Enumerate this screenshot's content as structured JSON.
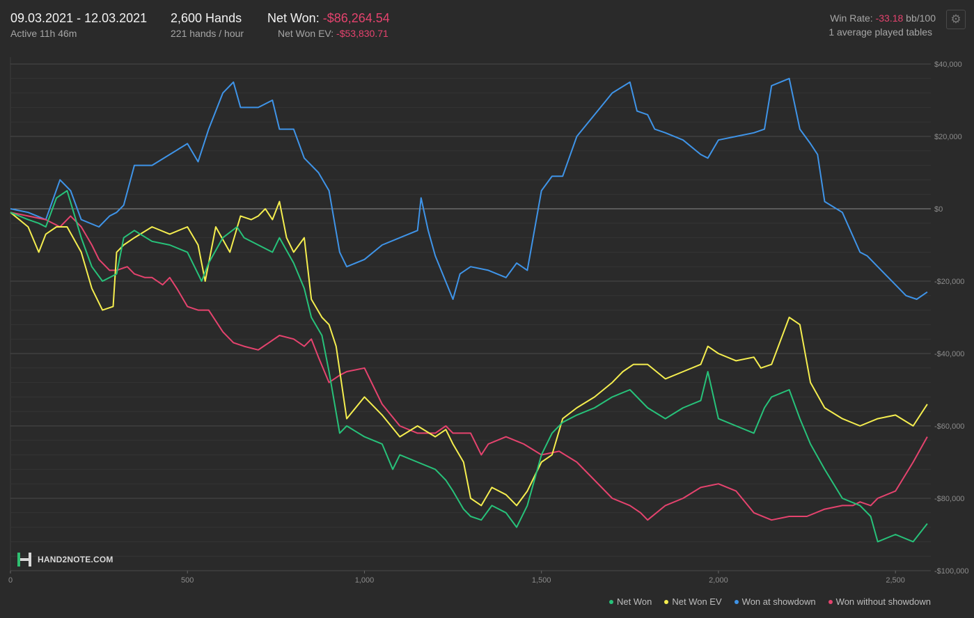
{
  "header": {
    "date_range": "09.03.2021 - 12.03.2021",
    "active": "Active 11h 46m",
    "hands": "2,600 Hands",
    "hands_per_hour": "221 hands / hour",
    "net_won_label": "Net Won:",
    "net_won_value": "-$86,264.54",
    "net_won_ev_label": "Net Won  EV:",
    "net_won_ev_value": "-$53,830.71",
    "win_rate_label": "Win Rate:",
    "win_rate_value": "-33.18",
    "win_rate_unit": "bb/100",
    "tables": "1 average played tables",
    "settings_icon": "gear-icon"
  },
  "logo": {
    "text": "HAND2NOTE.COM",
    "icon": "h2n-logo-icon"
  },
  "legend": [
    {
      "label": "Net Won",
      "color": "#27c27a"
    },
    {
      "label": "Net Won  EV",
      "color": "#f5ee4f"
    },
    {
      "label": "Won at showdown",
      "color": "#3f94e8"
    },
    {
      "label": "Won without showdown",
      "color": "#e5436e"
    }
  ],
  "chart_data": {
    "type": "line",
    "xlim": [
      0,
      2600
    ],
    "ylim": [
      -100000,
      40000
    ],
    "x_ticks": [
      0,
      500,
      1000,
      1500,
      2000,
      2500
    ],
    "x_tick_labels": [
      "0",
      "500",
      "1,000",
      "1,500",
      "2,000",
      "2,500"
    ],
    "y_ticks": [
      40000,
      20000,
      0,
      -20000,
      -40000,
      -60000,
      -80000,
      -100000
    ],
    "y_tick_labels": [
      "$40,000",
      "$20,000",
      "$0",
      "-$20,000",
      "-$40,000",
      "-$60,000",
      "-$80,000",
      "-$100,000"
    ],
    "grid": true,
    "legend_position": "bottom-right",
    "series": [
      {
        "name": "Won at showdown",
        "color": "#3f94e8",
        "x": [
          0,
          50,
          100,
          140,
          170,
          200,
          250,
          280,
          300,
          320,
          350,
          400,
          450,
          500,
          530,
          560,
          600,
          630,
          650,
          700,
          740,
          760,
          800,
          830,
          870,
          900,
          930,
          950,
          1000,
          1050,
          1100,
          1150,
          1160,
          1180,
          1200,
          1250,
          1270,
          1300,
          1350,
          1400,
          1430,
          1460,
          1500,
          1530,
          1560,
          1600,
          1650,
          1700,
          1750,
          1770,
          1800,
          1820,
          1850,
          1900,
          1950,
          1970,
          2000,
          2050,
          2100,
          2130,
          2150,
          2200,
          2230,
          2260,
          2280,
          2300,
          2350,
          2400,
          2420,
          2450,
          2500,
          2530,
          2560,
          2590
        ],
        "y": [
          0,
          -1000,
          -3000,
          8000,
          5000,
          -3000,
          -5000,
          -2000,
          -1000,
          1000,
          12000,
          12000,
          15000,
          18000,
          13000,
          22000,
          32000,
          35000,
          28000,
          28000,
          30000,
          22000,
          22000,
          14000,
          10000,
          5000,
          -12000,
          -16000,
          -14000,
          -10000,
          -8000,
          -6000,
          3000,
          -6000,
          -13000,
          -25000,
          -18000,
          -16000,
          -17000,
          -19000,
          -15000,
          -17000,
          5000,
          9000,
          9000,
          20000,
          26000,
          32000,
          35000,
          27000,
          26000,
          22000,
          21000,
          19000,
          15000,
          14000,
          19000,
          20000,
          21000,
          22000,
          34000,
          36000,
          22000,
          18000,
          15000,
          2000,
          -1000,
          -12000,
          -13000,
          -16000,
          -21000,
          -24000,
          -25000,
          -23000
        ]
      },
      {
        "name": "Won without showdown",
        "color": "#e5436e",
        "x": [
          0,
          50,
          100,
          140,
          170,
          200,
          230,
          250,
          280,
          300,
          330,
          350,
          380,
          400,
          430,
          450,
          470,
          500,
          530,
          560,
          600,
          630,
          660,
          700,
          730,
          760,
          800,
          830,
          850,
          870,
          900,
          930,
          950,
          1000,
          1030,
          1050,
          1100,
          1150,
          1200,
          1230,
          1250,
          1300,
          1330,
          1350,
          1400,
          1450,
          1500,
          1550,
          1600,
          1650,
          1700,
          1750,
          1780,
          1800,
          1850,
          1900,
          1950,
          2000,
          2050,
          2100,
          2150,
          2200,
          2250,
          2300,
          2350,
          2380,
          2400,
          2430,
          2450,
          2500,
          2550,
          2590
        ],
        "y": [
          -1000,
          -2000,
          -3000,
          -5000,
          -2000,
          -5000,
          -10000,
          -14000,
          -17000,
          -17000,
          -16000,
          -18000,
          -19000,
          -19000,
          -21000,
          -19000,
          -22000,
          -27000,
          -28000,
          -28000,
          -34000,
          -37000,
          -38000,
          -39000,
          -37000,
          -35000,
          -36000,
          -38000,
          -36000,
          -41000,
          -48000,
          -46000,
          -45000,
          -44000,
          -50000,
          -54000,
          -60000,
          -62000,
          -62000,
          -60000,
          -62000,
          -62000,
          -68000,
          -65000,
          -63000,
          -65000,
          -68000,
          -67000,
          -70000,
          -75000,
          -80000,
          -82000,
          -84000,
          -86000,
          -82000,
          -80000,
          -77000,
          -76000,
          -78000,
          -84000,
          -86000,
          -85000,
          -85000,
          -83000,
          -82000,
          -82000,
          -81000,
          -82000,
          -80000,
          -78000,
          -70000,
          -63000
        ]
      },
      {
        "name": "Net Won  EV",
        "color": "#f5ee4f",
        "x": [
          0,
          50,
          80,
          100,
          130,
          160,
          200,
          230,
          260,
          290,
          300,
          320,
          350,
          400,
          450,
          500,
          530,
          550,
          580,
          620,
          650,
          680,
          700,
          720,
          740,
          760,
          780,
          800,
          830,
          850,
          880,
          900,
          920,
          950,
          1000,
          1050,
          1100,
          1150,
          1200,
          1230,
          1250,
          1280,
          1300,
          1330,
          1360,
          1400,
          1430,
          1460,
          1500,
          1530,
          1560,
          1600,
          1650,
          1700,
          1730,
          1760,
          1800,
          1850,
          1900,
          1950,
          1970,
          2000,
          2050,
          2100,
          2120,
          2150,
          2200,
          2230,
          2260,
          2300,
          2350,
          2400,
          2450,
          2500,
          2550,
          2590
        ],
        "y": [
          -1000,
          -5000,
          -12000,
          -7000,
          -5000,
          -5000,
          -12000,
          -22000,
          -28000,
          -27000,
          -12000,
          -10000,
          -8000,
          -5000,
          -7000,
          -5000,
          -10000,
          -20000,
          -5000,
          -12000,
          -2000,
          -3000,
          -2000,
          0,
          -3000,
          2000,
          -8000,
          -12000,
          -8000,
          -25000,
          -30000,
          -32000,
          -38000,
          -58000,
          -52000,
          -57000,
          -63000,
          -60000,
          -63000,
          -61000,
          -65000,
          -70000,
          -80000,
          -82000,
          -77000,
          -79000,
          -82000,
          -78000,
          -70000,
          -68000,
          -58000,
          -55000,
          -52000,
          -48000,
          -45000,
          -43000,
          -43000,
          -47000,
          -45000,
          -43000,
          -38000,
          -40000,
          -42000,
          -41000,
          -44000,
          -43000,
          -30000,
          -32000,
          -48000,
          -55000,
          -58000,
          -60000,
          -58000,
          -57000,
          -60000,
          -54000
        ]
      },
      {
        "name": "Net Won",
        "color": "#27c27a",
        "x": [
          0,
          50,
          80,
          100,
          130,
          160,
          200,
          230,
          260,
          300,
          320,
          350,
          400,
          450,
          500,
          520,
          540,
          560,
          600,
          640,
          660,
          700,
          740,
          760,
          800,
          830,
          850,
          880,
          900,
          930,
          950,
          1000,
          1050,
          1080,
          1100,
          1150,
          1200,
          1230,
          1250,
          1280,
          1300,
          1330,
          1360,
          1400,
          1430,
          1460,
          1500,
          1530,
          1560,
          1600,
          1650,
          1700,
          1750,
          1800,
          1850,
          1900,
          1950,
          1970,
          2000,
          2050,
          2100,
          2130,
          2150,
          2200,
          2230,
          2260,
          2300,
          2350,
          2400,
          2430,
          2450,
          2500,
          2550,
          2590
        ],
        "y": [
          -1000,
          -3000,
          -4000,
          -5000,
          3000,
          5000,
          -8000,
          -16000,
          -20000,
          -18000,
          -8000,
          -6000,
          -9000,
          -10000,
          -12000,
          -16000,
          -20000,
          -15000,
          -8000,
          -5000,
          -8000,
          -10000,
          -12000,
          -8000,
          -15000,
          -22000,
          -30000,
          -35000,
          -45000,
          -62000,
          -60000,
          -63000,
          -65000,
          -72000,
          -68000,
          -70000,
          -72000,
          -75000,
          -78000,
          -83000,
          -85000,
          -86000,
          -82000,
          -84000,
          -88000,
          -82000,
          -68000,
          -62000,
          -59000,
          -57000,
          -55000,
          -52000,
          -50000,
          -55000,
          -58000,
          -55000,
          -53000,
          -45000,
          -58000,
          -60000,
          -62000,
          -55000,
          -52000,
          -50000,
          -58000,
          -65000,
          -72000,
          -80000,
          -82000,
          -85000,
          -92000,
          -90000,
          -92000,
          -87000
        ]
      }
    ]
  }
}
